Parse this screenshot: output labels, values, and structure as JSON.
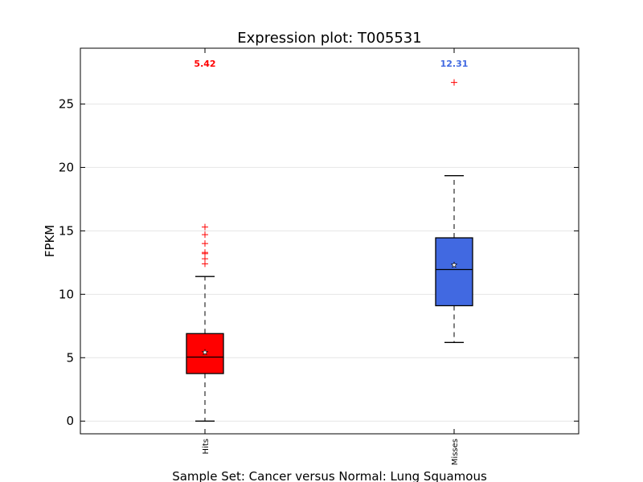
{
  "chart_data": {
    "type": "box",
    "title": "Expression plot: T005531",
    "ylabel": "FPKM",
    "xlabel": "Sample Set: Cancer versus Normal: Lung Squamous",
    "ylim": [
      -1,
      29.4
    ],
    "yticks": [
      0,
      5,
      10,
      15,
      20,
      25
    ],
    "grid": true,
    "series": [
      {
        "name": "Hits",
        "color": "#ff0000",
        "mean_label": "5.42",
        "mean": 5.42,
        "whisker_low": 0,
        "q1": 3.75,
        "median": 5.05,
        "q3": 6.9,
        "whisker_high": 11.4,
        "outliers": [
          12.4,
          12.8,
          13.2,
          13.3,
          14.0,
          14.7,
          15.3
        ]
      },
      {
        "name": "Misses",
        "color": "#4169e1",
        "mean_label": "12.31",
        "mean": 12.31,
        "whisker_low": 6.2,
        "q1": 9.1,
        "median": 11.95,
        "q3": 14.45,
        "whisker_high": 19.35,
        "outliers": [
          26.7
        ]
      }
    ]
  }
}
